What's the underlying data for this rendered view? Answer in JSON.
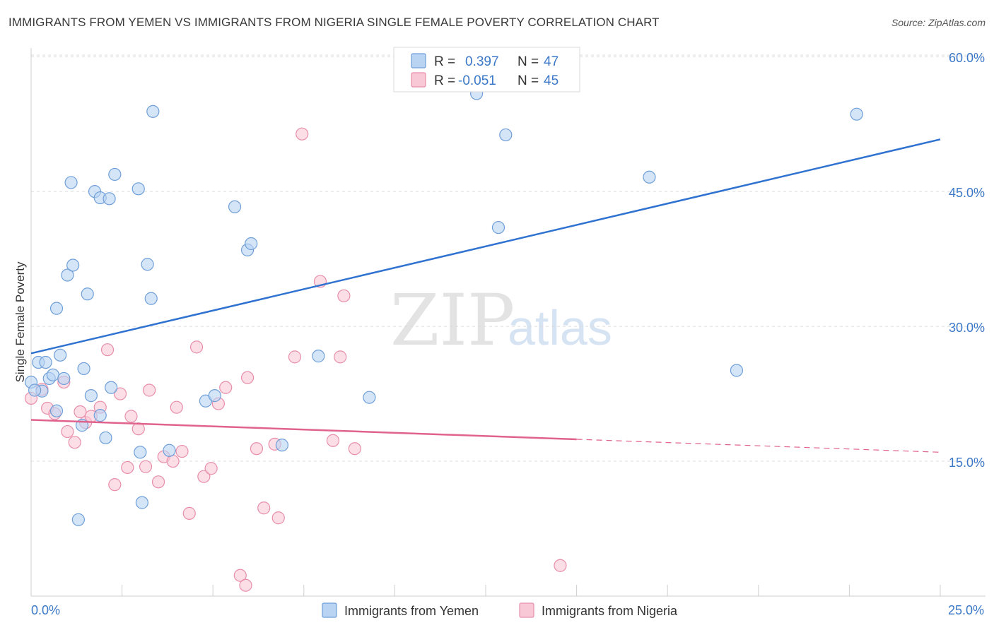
{
  "title": "IMMIGRANTS FROM YEMEN VS IMMIGRANTS FROM NIGERIA SINGLE FEMALE POVERTY CORRELATION CHART",
  "source": "Source: ZipAtlas.com",
  "watermark": {
    "zip": "ZIP",
    "atlas": "atlas"
  },
  "colors": {
    "yemen_fill": "#b9d3f3",
    "yemen_stroke": "#6f9fd8",
    "yemen_line": "#2f72d0",
    "nigeria_fill": "#f9c8d6",
    "nigeria_stroke": "#e88eab",
    "nigeria_line": "#e0638e",
    "grid": "#dcdcdc",
    "tick_text": "#3b78c8"
  },
  "legend": {
    "rows": [
      {
        "r_label": "R =",
        "r_value": "0.397",
        "n_label": "N =",
        "n_value": "47"
      },
      {
        "r_label": "R =",
        "r_value": "-0.051",
        "n_label": "N =",
        "n_value": "45"
      }
    ]
  },
  "chart_data": {
    "type": "scatter",
    "title": "IMMIGRANTS FROM YEMEN VS IMMIGRANTS FROM NIGERIA SINGLE FEMALE POVERTY CORRELATION CHART",
    "xlabel": "",
    "ylabel": "Single Female Poverty",
    "xlim": [
      0,
      25
    ],
    "ylim": [
      0,
      63
    ],
    "x_tick_labels": [
      "0.0%",
      "25.0%"
    ],
    "y_ticks": [
      15,
      30,
      45,
      60
    ],
    "y_tick_labels": [
      "15.0%",
      "30.0%",
      "45.0%",
      "60.0%"
    ],
    "legend_position": "top-center",
    "series": [
      {
        "name": "Immigrants from Yemen",
        "r": 0.397,
        "n": 47,
        "trend": {
          "x0": 0.0,
          "y0": 27.0,
          "x1": 25.0,
          "y1": 50.8,
          "dash_from_x": null
        },
        "points": [
          [
            0.0,
            23.8
          ],
          [
            0.2,
            26.0
          ],
          [
            0.3,
            22.8
          ],
          [
            0.4,
            26.0
          ],
          [
            0.5,
            24.2
          ],
          [
            0.6,
            24.6
          ],
          [
            0.7,
            20.6
          ],
          [
            0.7,
            32.0
          ],
          [
            0.8,
            26.8
          ],
          [
            0.9,
            24.2
          ],
          [
            1.0,
            35.7
          ],
          [
            1.1,
            46.0
          ],
          [
            1.15,
            36.8
          ],
          [
            1.3,
            8.5
          ],
          [
            1.4,
            19.0
          ],
          [
            1.45,
            25.3
          ],
          [
            1.55,
            33.6
          ],
          [
            1.65,
            22.3
          ],
          [
            1.75,
            45.0
          ],
          [
            1.9,
            44.3
          ],
          [
            1.9,
            20.1
          ],
          [
            2.05,
            17.6
          ],
          [
            2.15,
            44.2
          ],
          [
            2.2,
            23.2
          ],
          [
            2.3,
            46.9
          ],
          [
            2.95,
            45.3
          ],
          [
            3.0,
            16.0
          ],
          [
            3.05,
            10.4
          ],
          [
            3.2,
            36.9
          ],
          [
            3.3,
            33.1
          ],
          [
            3.35,
            53.9
          ],
          [
            3.8,
            16.2
          ],
          [
            4.8,
            21.7
          ],
          [
            5.05,
            22.3
          ],
          [
            5.6,
            43.3
          ],
          [
            5.95,
            38.5
          ],
          [
            6.05,
            39.2
          ],
          [
            6.9,
            16.8
          ],
          [
            7.9,
            26.7
          ],
          [
            9.3,
            22.1
          ],
          [
            12.25,
            55.9
          ],
          [
            12.85,
            41.0
          ],
          [
            13.05,
            51.3
          ],
          [
            17.0,
            46.6
          ],
          [
            19.4,
            25.1
          ],
          [
            22.7,
            53.6
          ],
          [
            0.1,
            22.9
          ]
        ]
      },
      {
        "name": "Immigrants from Nigeria",
        "r": -0.051,
        "n": 45,
        "trend": {
          "x0": 0.0,
          "y0": 19.6,
          "x1": 25.0,
          "y1": 16.0,
          "dash_from_x": 15.0
        },
        "points": [
          [
            0.0,
            22.0
          ],
          [
            0.3,
            23.0
          ],
          [
            0.45,
            20.9
          ],
          [
            0.65,
            20.3
          ],
          [
            0.9,
            23.8
          ],
          [
            1.0,
            18.3
          ],
          [
            1.2,
            17.1
          ],
          [
            1.35,
            20.5
          ],
          [
            1.5,
            19.3
          ],
          [
            1.65,
            20.0
          ],
          [
            1.9,
            21.0
          ],
          [
            2.1,
            27.4
          ],
          [
            2.3,
            12.4
          ],
          [
            2.45,
            22.5
          ],
          [
            2.65,
            14.3
          ],
          [
            2.75,
            20.0
          ],
          [
            2.95,
            18.6
          ],
          [
            3.15,
            14.4
          ],
          [
            3.25,
            22.9
          ],
          [
            3.5,
            12.7
          ],
          [
            3.65,
            15.5
          ],
          [
            3.9,
            15.0
          ],
          [
            4.0,
            21.0
          ],
          [
            4.15,
            16.1
          ],
          [
            4.35,
            9.2
          ],
          [
            4.55,
            27.7
          ],
          [
            4.75,
            13.3
          ],
          [
            4.95,
            14.2
          ],
          [
            5.15,
            21.4
          ],
          [
            5.35,
            23.2
          ],
          [
            5.75,
            2.3
          ],
          [
            5.9,
            1.2
          ],
          [
            5.95,
            24.3
          ],
          [
            6.2,
            16.4
          ],
          [
            6.4,
            9.8
          ],
          [
            6.7,
            16.9
          ],
          [
            6.8,
            8.7
          ],
          [
            7.25,
            26.6
          ],
          [
            7.45,
            51.4
          ],
          [
            7.95,
            35.0
          ],
          [
            8.3,
            17.3
          ],
          [
            8.5,
            26.6
          ],
          [
            8.6,
            33.4
          ],
          [
            8.9,
            16.4
          ],
          [
            14.55,
            3.4
          ]
        ]
      }
    ]
  },
  "bottom_legend": {
    "yemen_label": "Immigrants from Yemen",
    "nigeria_label": "Immigrants from Nigeria"
  }
}
